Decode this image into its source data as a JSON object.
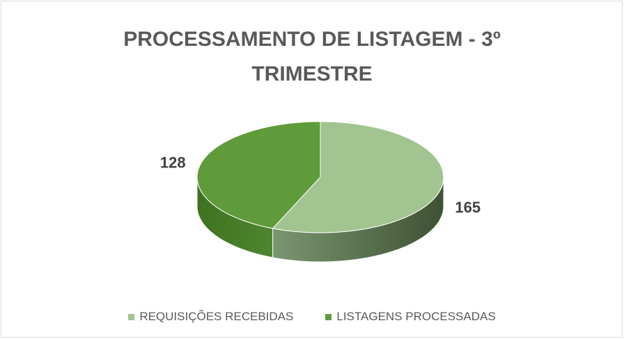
{
  "chart_data": {
    "type": "pie3d",
    "title": "PROCESSAMENTO DE LISTAGEM - 3º TRIMESTRE",
    "categories": [
      "REQUISIÇÕES RECEBIDAS",
      "LISTAGENS PROCESSADAS"
    ],
    "values": [
      165,
      128
    ],
    "colors": [
      "#a1c490",
      "#5f9b3a"
    ],
    "legend": "bottom"
  }
}
